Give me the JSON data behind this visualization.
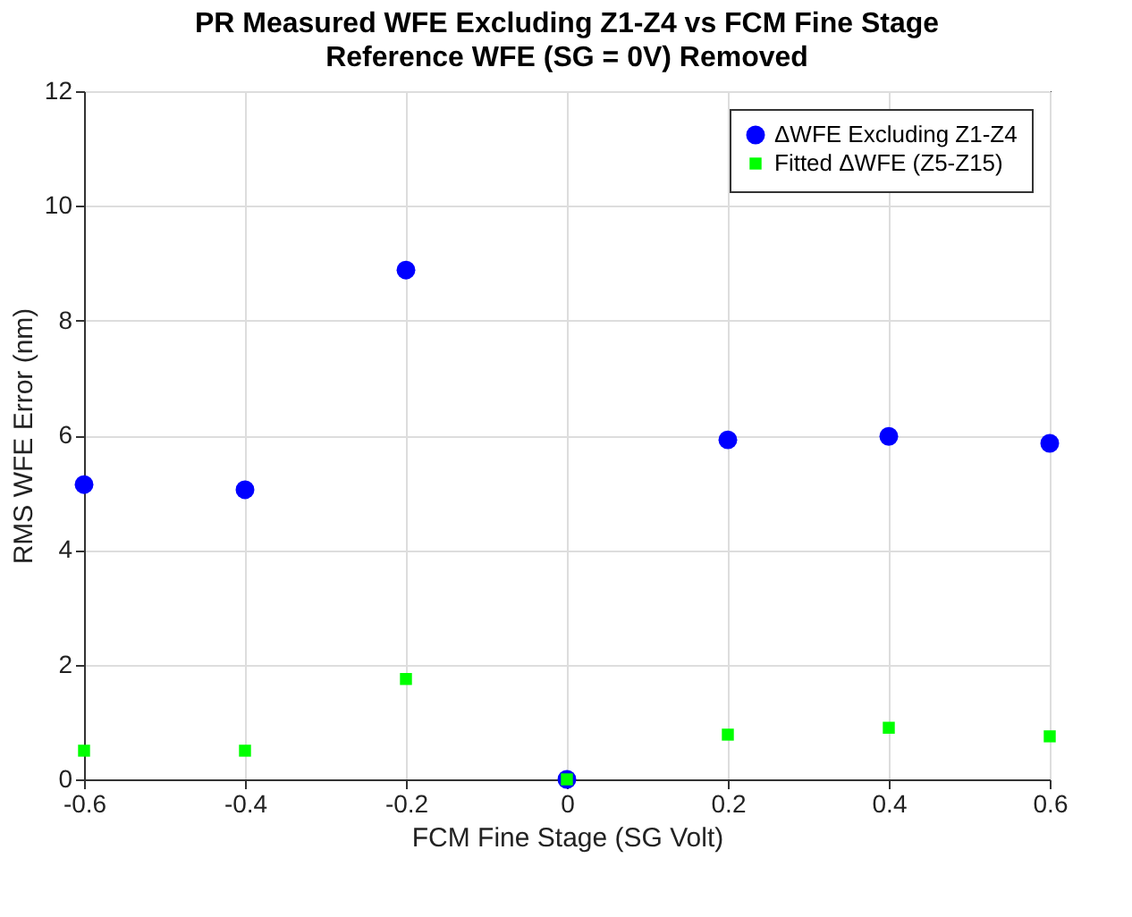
{
  "chart_data": {
    "type": "scatter",
    "title": "PR Measured WFE Excluding Z1-Z4 vs FCM Fine Stage",
    "subtitle": "Reference WFE (SG = 0V) Removed",
    "xlabel": "FCM Fine Stage (SG Volt)",
    "ylabel": "RMS WFE Error (nm)",
    "x": [
      -0.6,
      -0.4,
      -0.2,
      0,
      0.2,
      0.4,
      0.6
    ],
    "series": [
      {
        "name": "ΔWFE Excluding Z1-Z4",
        "color": "#0000ff",
        "marker": "circle",
        "values": [
          5.14,
          5.05,
          8.88,
          0,
          5.92,
          5.98,
          5.86
        ]
      },
      {
        "name": "Fitted ΔWFE (Z5-Z15)",
        "color": "#00ff00",
        "marker": "square",
        "values": [
          0.5,
          0.5,
          1.75,
          0,
          0.78,
          0.9,
          0.75
        ]
      }
    ],
    "xlim": [
      -0.6,
      0.6
    ],
    "xticks": [
      -0.6,
      -0.4,
      -0.2,
      0,
      0.2,
      0.4,
      0.6
    ],
    "ylim": [
      0,
      12
    ],
    "yticks": [
      0,
      2,
      4,
      6,
      8,
      10,
      12
    ],
    "grid": true,
    "legend": "top right"
  }
}
